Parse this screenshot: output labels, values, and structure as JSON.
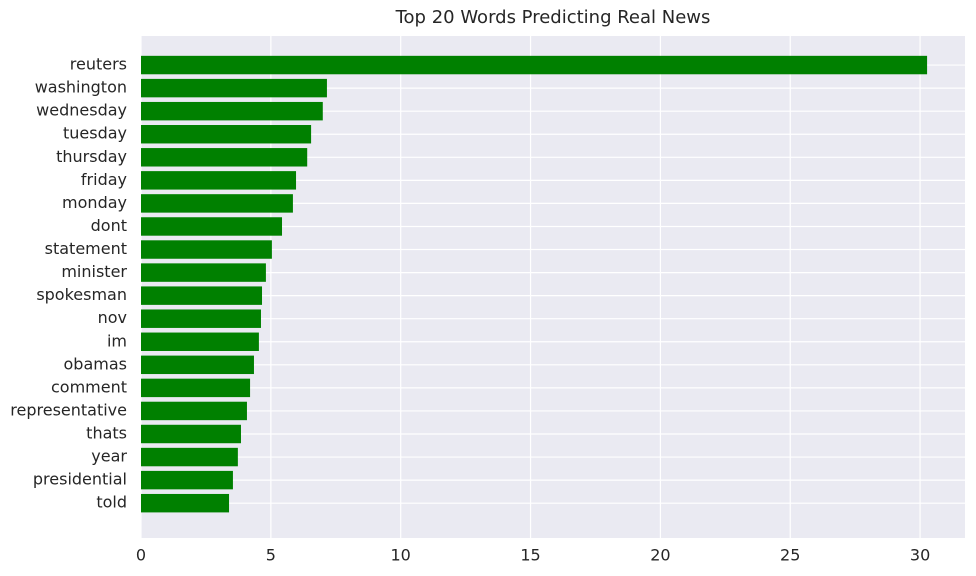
{
  "chart_data": {
    "type": "barh",
    "title": "Top 20 Words Predicting Real News",
    "categories": [
      "reuters",
      "washington",
      "wednesday",
      "tuesday",
      "thursday",
      "friday",
      "monday",
      "dont",
      "statement",
      "minister",
      "spokesman",
      "nov",
      "im",
      "obamas",
      "comment",
      "representative",
      "thats",
      "year",
      "presidential",
      "told"
    ],
    "values": [
      30.27,
      7.16,
      7.0,
      6.55,
      6.4,
      5.97,
      5.85,
      5.43,
      5.04,
      4.81,
      4.66,
      4.62,
      4.54,
      4.35,
      4.2,
      4.08,
      3.85,
      3.73,
      3.54,
      3.39
    ],
    "color": "#008000",
    "xlim": [
      0,
      31.73
    ],
    "xticks": [
      0,
      5,
      10,
      15,
      20,
      25,
      30
    ],
    "grid": true
  }
}
